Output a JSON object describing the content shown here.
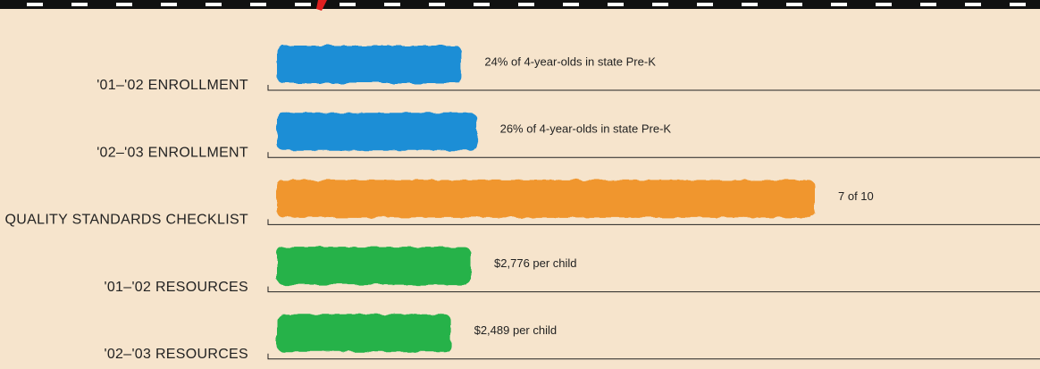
{
  "chart_data": [
    {
      "type": "bar",
      "categories": [
        "'01–'02 ENROLLMENT"
      ],
      "values": [
        24
      ],
      "value_labels": [
        "24% of 4-year-olds in state Pre-K"
      ],
      "color": "#1e8ed6",
      "xlim": [
        0,
        100
      ]
    },
    {
      "type": "bar",
      "categories": [
        "'02–'03 ENROLLMENT"
      ],
      "values": [
        26
      ],
      "value_labels": [
        "26% of 4-year-olds in state Pre-K"
      ],
      "color": "#1e8ed6",
      "xlim": [
        0,
        100
      ]
    },
    {
      "type": "bar",
      "categories": [
        "QUALITY STANDARDS CHECKLIST"
      ],
      "values": [
        7
      ],
      "value_labels": [
        "7 of 10"
      ],
      "color": "#f0962e",
      "xlim": [
        0,
        10
      ]
    },
    {
      "type": "bar",
      "categories": [
        "'01–'02 RESOURCES"
      ],
      "values": [
        2776
      ],
      "value_labels": [
        "$2,776 per child"
      ],
      "color": "#27b24a",
      "xlim": [
        0,
        11000
      ]
    },
    {
      "type": "bar",
      "categories": [
        "'02–'03 RESOURCES"
      ],
      "values": [
        2489
      ],
      "value_labels": [
        "$2,489 per child"
      ],
      "color": "#27b24a",
      "xlim": [
        0,
        11000
      ]
    }
  ]
}
